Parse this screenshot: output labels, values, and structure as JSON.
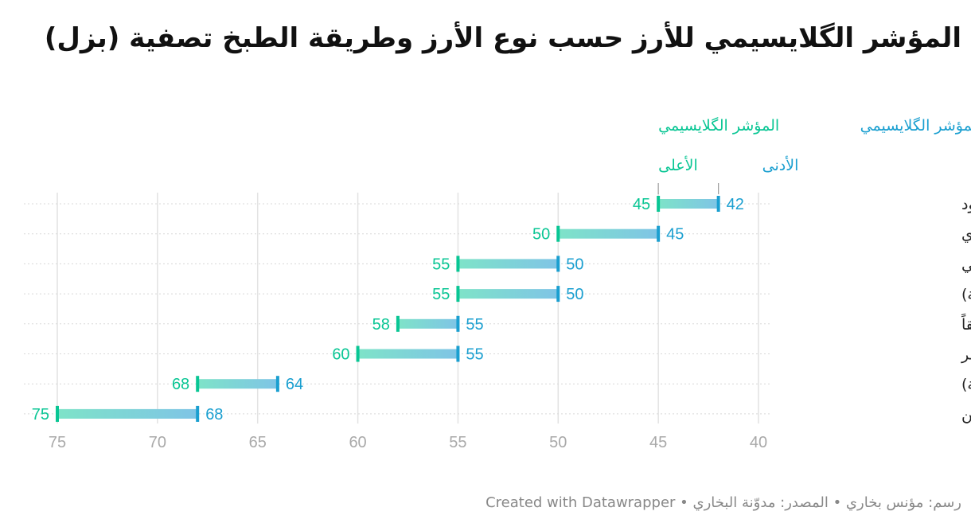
{
  "title": "المؤشر الگلايسيمي للأرز حسب نوع الأرز وطريقة الطبخ تصفية (بزل)",
  "footer": "رسم: مؤنس بخاري • المصدر: مدوّنة البخاري • Created with Datawrapper",
  "colors": {
    "high": "#09c694",
    "low": "#1a9fd0",
    "grid": "#e2e2e2",
    "row_line": "#d8d8d8",
    "label": "#222222",
    "tick": "#a9a9a9"
  },
  "chart_data": {
    "type": "range-dot",
    "title": "المؤشر الگلايسيمي للأرز حسب نوع الأرز وطريقة الطبخ تصفية (بزل)",
    "legend": {
      "high": [
        "المؤشر الگلايسيمي",
        "الأعلى"
      ],
      "low": [
        "المؤشر الگلايسيمي",
        "الأدنى"
      ]
    },
    "x_axis": {
      "min": 40,
      "max": 75,
      "reversed": true,
      "ticks": [
        75,
        70,
        65,
        60,
        55,
        50,
        45,
        40
      ],
      "grid": true
    },
    "rows": [
      {
        "label": "الأرز الأسود",
        "high": 45,
        "low": 42
      },
      {
        "label": "الأرز البري",
        "high": 50,
        "low": 45
      },
      {
        "label": "أرز البسمتي",
        "high": 55,
        "low": 50
      },
      {
        "label": "الأرز البني (حبة طويلة)",
        "high": 55,
        "low": 50
      },
      {
        "label": "الأرز المسلوق مسبقاً",
        "high": 58,
        "low": 55
      },
      {
        "label": "الأرز الأحمر",
        "high": 60,
        "low": 55
      },
      {
        "label": "الأرز الأبيض (حبة طويلة)",
        "high": 68,
        "low": 64
      },
      {
        "label": "أرز الياسمين",
        "high": 75,
        "low": 68
      }
    ]
  }
}
